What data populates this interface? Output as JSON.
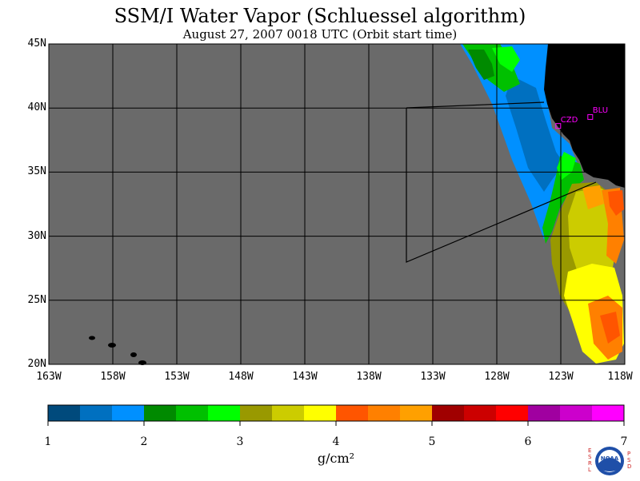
{
  "title": "SSM/I Water Vapor (Schluessel algorithm)",
  "subtitle": "August 27, 2007  0018 UTC  (Orbit start time)",
  "map": {
    "lon_range": [
      -163,
      -118
    ],
    "lat_range": [
      20,
      45
    ],
    "lat_labels": [
      "45N",
      "40N",
      "35N",
      "30N",
      "25N",
      "20N"
    ],
    "lon_labels": [
      "163W",
      "158W",
      "153W",
      "148W",
      "143W",
      "138W",
      "133W",
      "128W",
      "123W",
      "118W"
    ],
    "colors": {
      "background": "#6a6a6a",
      "land": "#000000",
      "gridlines": "#000000"
    },
    "stations": [
      {
        "label": "CZD",
        "lat": 38.6,
        "lon": -123.2
      },
      {
        "label": "BLU",
        "lat": 39.3,
        "lon": -120.7
      }
    ]
  },
  "colorbar": {
    "ticks": [
      "1",
      "2",
      "3",
      "4",
      "5",
      "6",
      "7"
    ],
    "units": "g/cm²",
    "colors": [
      "#004a7c",
      "#0070c0",
      "#0090ff",
      "#008a00",
      "#00c000",
      "#00ff00",
      "#999900",
      "#cccc00",
      "#ffff00",
      "#ff5500",
      "#ff8000",
      "#ffa000",
      "#a00000",
      "#cc0000",
      "#ff0000",
      "#a000a0",
      "#cc00cc",
      "#ff00ff"
    ]
  },
  "logo": {
    "text": "NOAA",
    "left_letters": [
      "E",
      "S",
      "R",
      "L"
    ],
    "right_letters": [
      "P",
      "S",
      "D"
    ]
  }
}
